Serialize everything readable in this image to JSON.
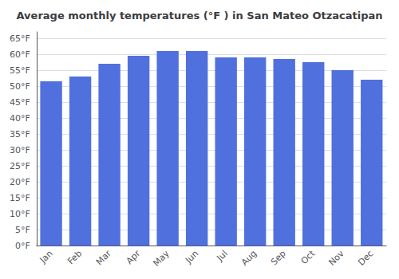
{
  "chart_data": {
    "type": "bar",
    "title": "Average monthly temperatures (°F ) in San Mateo Otzacatipan",
    "categories": [
      "Jan",
      "Feb",
      "Mar",
      "Apr",
      "May",
      "Jun",
      "Jul",
      "Aug",
      "Sep",
      "Oct",
      "Nov",
      "Dec"
    ],
    "values": [
      51.5,
      53.0,
      57.0,
      59.5,
      61.0,
      61.0,
      59.0,
      59.0,
      58.5,
      57.5,
      55.0,
      52.0
    ],
    "ylim": [
      0,
      67
    ],
    "yticks": [
      {
        "value": 0,
        "label": "0°F"
      },
      {
        "value": 5,
        "label": "5°F"
      },
      {
        "value": 10,
        "label": "10°F"
      },
      {
        "value": 15,
        "label": "15°F"
      },
      {
        "value": 20,
        "label": "20°F"
      },
      {
        "value": 25,
        "label": "25°F"
      },
      {
        "value": 30,
        "label": "30°F"
      },
      {
        "value": 35,
        "label": "35°F"
      },
      {
        "value": 40,
        "label": "40°F"
      },
      {
        "value": 45,
        "label": "45°F"
      },
      {
        "value": 50,
        "label": "50°F"
      },
      {
        "value": 55,
        "label": "55°F"
      },
      {
        "value": 60,
        "label": "60°F"
      },
      {
        "value": 65,
        "label": "65°F"
      }
    ],
    "grid": true
  }
}
